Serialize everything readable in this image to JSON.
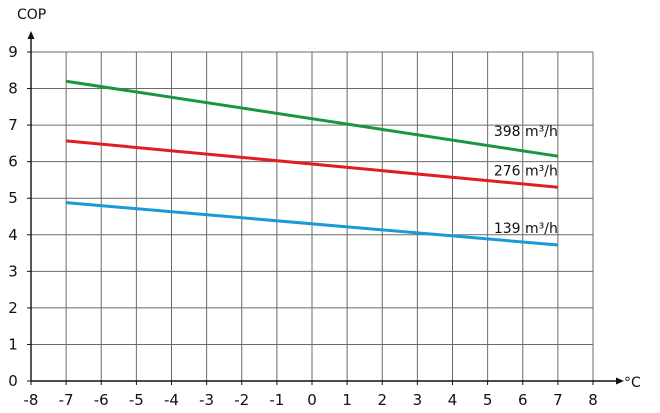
{
  "chart_data": {
    "type": "line",
    "title": "",
    "xlabel": "°C",
    "ylabel": "COP",
    "xlim": [
      -8,
      8
    ],
    "ylim": [
      0,
      9
    ],
    "x_ticks": [
      "-8",
      "-7",
      "-6",
      "-5",
      "-4",
      "-3",
      "-2",
      "-1",
      "0",
      "1",
      "2",
      "3",
      "4",
      "5",
      "6",
      "7",
      "8"
    ],
    "y_ticks": [
      "0",
      "1",
      "2",
      "3",
      "4",
      "5",
      "6",
      "7",
      "8",
      "9"
    ],
    "grid": true,
    "legend": "inline labels at line ends",
    "series": [
      {
        "name": "398 m³/h",
        "color": "#1a9641",
        "x": [
          -7,
          7
        ],
        "y": [
          8.2,
          6.15
        ]
      },
      {
        "name": "276 m³/h",
        "color": "#e01e24",
        "x": [
          -7,
          7
        ],
        "y": [
          6.57,
          5.3
        ]
      },
      {
        "name": "139 m³/h",
        "color": "#1b9ad8",
        "x": [
          -7,
          7
        ],
        "y": [
          4.88,
          3.72
        ]
      }
    ]
  }
}
